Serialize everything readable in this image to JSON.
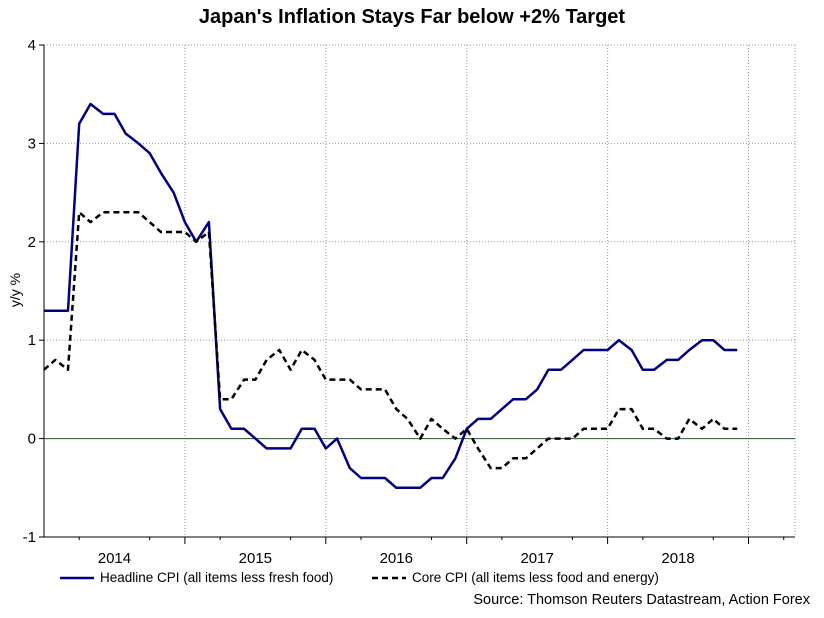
{
  "chart_data": {
    "type": "line",
    "title": "Japan's Inflation Stays Far below +2% Target",
    "ylabel": "y/y %",
    "xlabel": "",
    "ylim": [
      -1,
      4
    ],
    "y_ticks": [
      "-1",
      "0",
      "1",
      "2",
      "3",
      "4"
    ],
    "x_start": 2013.5,
    "x_end": 2018.83,
    "year_labels": [
      {
        "label": "2014",
        "center": 2014.0
      },
      {
        "label": "2015",
        "center": 2015.0
      },
      {
        "label": "2016",
        "center": 2016.0
      },
      {
        "label": "2017",
        "center": 2017.0
      },
      {
        "label": "2018",
        "center": 2018.0
      }
    ],
    "x_gridlines": [
      2014.5,
      2015.5,
      2016.5,
      2017.5,
      2018.5
    ],
    "series": [
      {
        "name": "Headline CPI (all items less fresh food)",
        "color": "#000080",
        "style": "solid",
        "x": [
          2013.5,
          2013.58,
          2013.67,
          2013.75,
          2013.83,
          2013.92,
          2014.0,
          2014.08,
          2014.17,
          2014.25,
          2014.33,
          2014.42,
          2014.5,
          2014.58,
          2014.67,
          2014.75,
          2014.83,
          2014.92,
          2015.0,
          2015.08,
          2015.17,
          2015.25,
          2015.33,
          2015.42,
          2015.5,
          2015.58,
          2015.67,
          2015.75,
          2015.83,
          2015.92,
          2016.0,
          2016.08,
          2016.17,
          2016.25,
          2016.33,
          2016.42,
          2016.5,
          2016.58,
          2016.67,
          2016.75,
          2016.83,
          2016.92,
          2017.0,
          2017.08,
          2017.17,
          2017.25,
          2017.33,
          2017.42,
          2017.5,
          2017.58,
          2017.67,
          2017.75,
          2017.83,
          2017.92,
          2018.0,
          2018.08,
          2018.17,
          2018.25,
          2018.33,
          2018.42
        ],
        "values": [
          1.3,
          1.3,
          1.3,
          3.2,
          3.4,
          3.3,
          3.3,
          3.1,
          3.0,
          2.9,
          2.7,
          2.5,
          2.2,
          2.0,
          2.2,
          0.3,
          0.1,
          0.1,
          0.0,
          -0.1,
          -0.1,
          -0.1,
          0.1,
          0.1,
          -0.1,
          0.0,
          -0.3,
          -0.4,
          -0.4,
          -0.4,
          -0.5,
          -0.5,
          -0.5,
          -0.4,
          -0.4,
          -0.2,
          0.1,
          0.2,
          0.2,
          0.3,
          0.4,
          0.4,
          0.5,
          0.7,
          0.7,
          0.8,
          0.9,
          0.9,
          0.9,
          1.0,
          0.9,
          0.7,
          0.7,
          0.8,
          0.8,
          0.9,
          1.0,
          1.0,
          0.9,
          0.9
        ]
      },
      {
        "name": "Core CPI (all items less food and energy)",
        "color": "#000000",
        "style": "dashed",
        "x": [
          2013.5,
          2013.58,
          2013.67,
          2013.75,
          2013.83,
          2013.92,
          2014.0,
          2014.08,
          2014.17,
          2014.25,
          2014.33,
          2014.42,
          2014.5,
          2014.58,
          2014.67,
          2014.75,
          2014.83,
          2014.92,
          2015.0,
          2015.08,
          2015.17,
          2015.25,
          2015.33,
          2015.42,
          2015.5,
          2015.58,
          2015.67,
          2015.75,
          2015.83,
          2015.92,
          2016.0,
          2016.08,
          2016.17,
          2016.25,
          2016.33,
          2016.42,
          2016.5,
          2016.58,
          2016.67,
          2016.75,
          2016.83,
          2016.92,
          2017.0,
          2017.08,
          2017.17,
          2017.25,
          2017.33,
          2017.42,
          2017.5,
          2017.58,
          2017.67,
          2017.75,
          2017.83,
          2017.92,
          2018.0,
          2018.08,
          2018.17,
          2018.25,
          2018.33,
          2018.42
        ],
        "values": [
          0.7,
          0.8,
          0.7,
          2.3,
          2.2,
          2.3,
          2.3,
          2.3,
          2.3,
          2.2,
          2.1,
          2.1,
          2.1,
          2.0,
          2.1,
          0.4,
          0.4,
          0.6,
          0.6,
          0.8,
          0.9,
          0.7,
          0.9,
          0.8,
          0.6,
          0.6,
          0.6,
          0.5,
          0.5,
          0.5,
          0.3,
          0.2,
          0.0,
          0.2,
          0.1,
          0.0,
          0.1,
          -0.1,
          -0.3,
          -0.3,
          -0.2,
          -0.2,
          -0.1,
          0.0,
          0.0,
          0.0,
          0.1,
          0.1,
          0.1,
          0.3,
          0.3,
          0.1,
          0.1,
          0.0,
          0.0,
          0.2,
          0.1,
          0.2,
          0.1,
          0.1
        ]
      }
    ],
    "legend": [
      {
        "label": "Headline CPI (all items less fresh food)",
        "color": "#000080",
        "style": "solid"
      },
      {
        "label": "Core CPI (all items less food and energy)",
        "color": "#000000",
        "style": "dashed"
      }
    ],
    "source": "Source: Thomson Reuters Datastream, Action Forex"
  }
}
